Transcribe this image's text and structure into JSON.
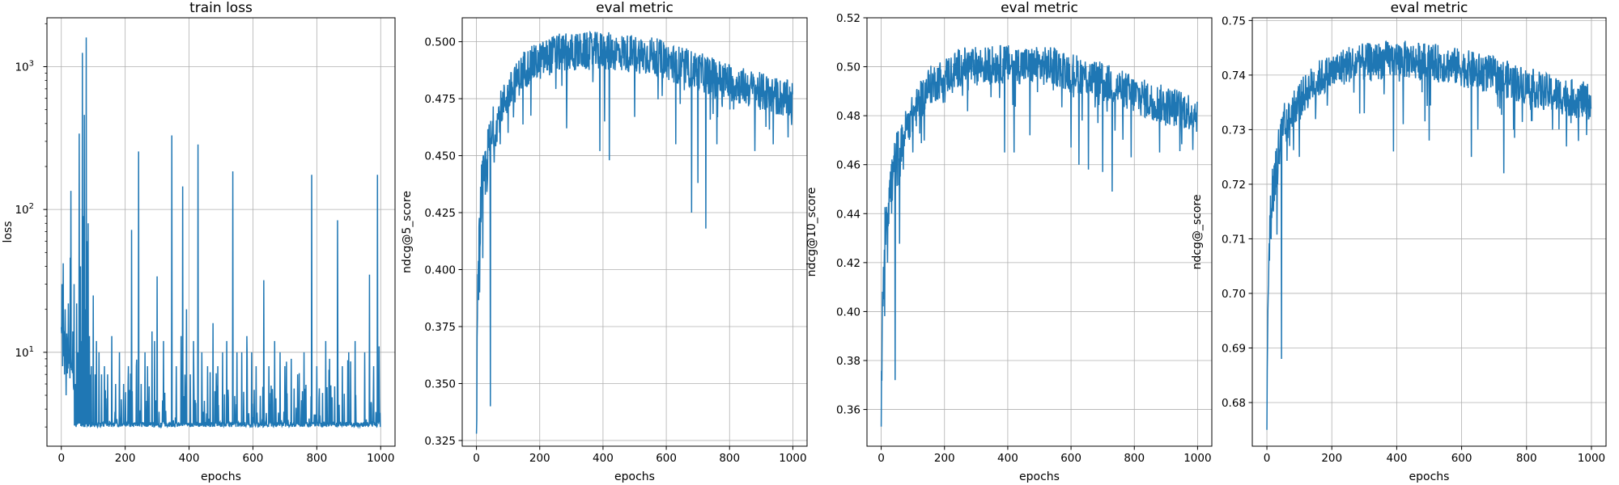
{
  "colors": {
    "line": "#1f77b4",
    "grid": "#b0b0b0",
    "spine": "#000000"
  },
  "chart_data": [
    {
      "type": "line",
      "title": "train loss",
      "xlabel": "epochs",
      "ylabel": "loss",
      "yscale": "log",
      "xlim": [
        -45,
        1045
      ],
      "ylim": [
        2.2,
        2200
      ],
      "xticks": [
        0,
        200,
        400,
        600,
        800,
        1000
      ],
      "yticks": [
        10,
        100,
        1000
      ],
      "ytick_labels": [
        "10^1",
        "10^2",
        "10^3"
      ],
      "grid": true,
      "series": [
        {
          "x_range": [
            0,
            999
          ],
          "points": 1000,
          "baseline": 3.0,
          "noise": 1.6,
          "values": [
            [
              0,
              15
            ],
            [
              2,
              30
            ],
            [
              4,
              8
            ],
            [
              6,
              42
            ],
            [
              8,
              12
            ],
            [
              10,
              7
            ],
            [
              12,
              20
            ],
            [
              15,
              5
            ],
            [
              18,
              12
            ],
            [
              22,
              22
            ],
            [
              25,
              9
            ],
            [
              28,
              46
            ],
            [
              30,
              135
            ],
            [
              33,
              8
            ],
            [
              36,
              14
            ],
            [
              40,
              30
            ],
            [
              44,
              6
            ],
            [
              48,
              22
            ],
            [
              52,
              10
            ],
            [
              56,
              340
            ],
            [
              60,
              40
            ],
            [
              63,
              12
            ],
            [
              66,
              1250
            ],
            [
              69,
              90
            ],
            [
              72,
              460
            ],
            [
              75,
              20
            ],
            [
              78,
              1600
            ],
            [
              80,
              60
            ],
            [
              84,
              80
            ],
            [
              88,
              13
            ],
            [
              94,
              8
            ],
            [
              100,
              25
            ],
            [
              106,
              7
            ],
            [
              110,
              12
            ],
            [
              118,
              10
            ],
            [
              126,
              7
            ],
            [
              135,
              8
            ],
            [
              145,
              7
            ],
            [
              158,
              13
            ],
            [
              170,
              6
            ],
            [
              182,
              10
            ],
            [
              195,
              6
            ],
            [
              210,
              8
            ],
            [
              220,
              72
            ],
            [
              235,
              8
            ],
            [
              242,
              255
            ],
            [
              250,
              6
            ],
            [
              262,
              10
            ],
            [
              270,
              8
            ],
            [
              284,
              14
            ],
            [
              292,
              12
            ],
            [
              300,
              34
            ],
            [
              320,
              12
            ],
            [
              346,
              330
            ],
            [
              360,
              8
            ],
            [
              375,
              13
            ],
            [
              380,
              145
            ],
            [
              392,
              20
            ],
            [
              404,
              7
            ],
            [
              414,
              12
            ],
            [
              428,
              285
            ],
            [
              440,
              10
            ],
            [
              458,
              8
            ],
            [
              475,
              16
            ],
            [
              490,
              8
            ],
            [
              505,
              10
            ],
            [
              518,
              12
            ],
            [
              537,
              185
            ],
            [
              550,
              10
            ],
            [
              565,
              10
            ],
            [
              581,
              13
            ],
            [
              596,
              10
            ],
            [
              610,
              8
            ],
            [
              634,
              32
            ],
            [
              650,
              8
            ],
            [
              668,
              12
            ],
            [
              685,
              10
            ],
            [
              700,
              8
            ],
            [
              720,
              9
            ],
            [
              740,
              7
            ],
            [
              760,
              10
            ],
            [
              784,
              175
            ],
            [
              800,
              8
            ],
            [
              828,
              12
            ],
            [
              840,
              9
            ],
            [
              865,
              84
            ],
            [
              880,
              8
            ],
            [
              900,
              10
            ],
            [
              920,
              12
            ],
            [
              950,
              10
            ],
            [
              965,
              35
            ],
            [
              978,
              8
            ],
            [
              990,
              175
            ],
            [
              995,
              11
            ],
            [
              999,
              3
            ]
          ]
        }
      ]
    },
    {
      "type": "line",
      "title": "eval metric",
      "xlabel": "epochs",
      "ylabel": "ndcg@5_score",
      "xlim": [
        -45,
        1045
      ],
      "ylim": [
        0.3225,
        0.5105
      ],
      "xticks": [
        0,
        200,
        400,
        600,
        800,
        1000
      ],
      "yticks": [
        0.325,
        0.35,
        0.375,
        0.4,
        0.425,
        0.45,
        0.475,
        0.5
      ],
      "ytick_labels": [
        "0.325",
        "0.350",
        "0.375",
        "0.400",
        "0.425",
        "0.450",
        "0.475",
        "0.500"
      ],
      "grid": true,
      "series": [
        {
          "x_range": [
            0,
            999
          ],
          "points": 1000,
          "noise": 0.0085,
          "trend": [
            [
              0,
              0.33
            ],
            [
              5,
              0.4
            ],
            [
              15,
              0.432
            ],
            [
              40,
              0.452
            ],
            [
              80,
              0.472
            ],
            [
              150,
              0.488
            ],
            [
              250,
              0.495
            ],
            [
              400,
              0.496
            ],
            [
              550,
              0.494
            ],
            [
              700,
              0.487
            ],
            [
              850,
              0.48
            ],
            [
              1000,
              0.474
            ]
          ],
          "dips": [
            [
              0,
              0.328
            ],
            [
              10,
              0.39
            ],
            [
              20,
              0.405
            ],
            [
              35,
              0.44
            ],
            [
              44,
              0.34
            ],
            [
              75,
              0.455
            ],
            [
              100,
              0.46
            ],
            [
              285,
              0.462
            ],
            [
              390,
              0.452
            ],
            [
              405,
              0.465
            ],
            [
              420,
              0.448
            ],
            [
              500,
              0.467
            ],
            [
              630,
              0.455
            ],
            [
              680,
              0.425
            ],
            [
              700,
              0.438
            ],
            [
              725,
              0.418
            ],
            [
              760,
              0.455
            ],
            [
              880,
              0.452
            ],
            [
              985,
              0.458
            ]
          ]
        }
      ]
    },
    {
      "type": "line",
      "title": "eval metric",
      "xlabel": "epochs",
      "ylabel": "ndcg@10_score",
      "xlim": [
        -45,
        1045
      ],
      "ylim": [
        0.345,
        0.52
      ],
      "xticks": [
        0,
        200,
        400,
        600,
        800,
        1000
      ],
      "yticks": [
        0.36,
        0.38,
        0.4,
        0.42,
        0.44,
        0.46,
        0.48,
        0.5,
        0.52
      ],
      "ytick_labels": [
        "0.36",
        "0.38",
        "0.40",
        "0.42",
        "0.44",
        "0.46",
        "0.48",
        "0.50",
        "0.52"
      ],
      "grid": true,
      "series": [
        {
          "x_range": [
            0,
            999
          ],
          "points": 1000,
          "noise": 0.008,
          "trend": [
            [
              0,
              0.355
            ],
            [
              5,
              0.41
            ],
            [
              15,
              0.44
            ],
            [
              40,
              0.457
            ],
            [
              80,
              0.476
            ],
            [
              150,
              0.492
            ],
            [
              250,
              0.5
            ],
            [
              400,
              0.501
            ],
            [
              550,
              0.5
            ],
            [
              700,
              0.494
            ],
            [
              850,
              0.486
            ],
            [
              1000,
              0.481
            ]
          ],
          "dips": [
            [
              0,
              0.353
            ],
            [
              8,
              0.405
            ],
            [
              20,
              0.42
            ],
            [
              33,
              0.44
            ],
            [
              44,
              0.372
            ],
            [
              70,
              0.458
            ],
            [
              100,
              0.465
            ],
            [
              390,
              0.465
            ],
            [
              420,
              0.465
            ],
            [
              470,
              0.472
            ],
            [
              600,
              0.467
            ],
            [
              625,
              0.46
            ],
            [
              655,
              0.458
            ],
            [
              700,
              0.457
            ],
            [
              730,
              0.449
            ],
            [
              790,
              0.463
            ],
            [
              880,
              0.465
            ],
            [
              985,
              0.466
            ]
          ]
        }
      ]
    },
    {
      "type": "line",
      "title": "eval metric",
      "xlabel": "epochs",
      "ylabel": "ndcg@_score",
      "xlim": [
        -45,
        1045
      ],
      "ylim": [
        0.672,
        0.7505
      ],
      "xticks": [
        0,
        200,
        400,
        600,
        800,
        1000
      ],
      "yticks": [
        0.68,
        0.69,
        0.7,
        0.71,
        0.72,
        0.73,
        0.74,
        0.75
      ],
      "ytick_labels": [
        "0.68",
        "0.69",
        "0.70",
        "0.71",
        "0.72",
        "0.73",
        "0.74",
        "0.75"
      ],
      "grid": true,
      "series": [
        {
          "x_range": [
            0,
            999
          ],
          "points": 1000,
          "noise": 0.0035,
          "trend": [
            [
              0,
              0.676
            ],
            [
              5,
              0.705
            ],
            [
              15,
              0.718
            ],
            [
              40,
              0.727
            ],
            [
              80,
              0.734
            ],
            [
              150,
              0.739
            ],
            [
              250,
              0.742
            ],
            [
              400,
              0.743
            ],
            [
              550,
              0.742
            ],
            [
              700,
              0.74
            ],
            [
              850,
              0.737
            ],
            [
              1000,
              0.735
            ]
          ],
          "dips": [
            [
              0,
              0.675
            ],
            [
              8,
              0.706
            ],
            [
              20,
              0.715
            ],
            [
              33,
              0.72
            ],
            [
              45,
              0.688
            ],
            [
              70,
              0.727
            ],
            [
              100,
              0.725
            ],
            [
              300,
              0.733
            ],
            [
              390,
              0.726
            ],
            [
              420,
              0.731
            ],
            [
              500,
              0.728
            ],
            [
              630,
              0.725
            ],
            [
              650,
              0.73
            ],
            [
              730,
              0.722
            ],
            [
              760,
              0.73
            ],
            [
              880,
              0.73
            ],
            [
              985,
              0.729
            ]
          ]
        }
      ]
    }
  ]
}
